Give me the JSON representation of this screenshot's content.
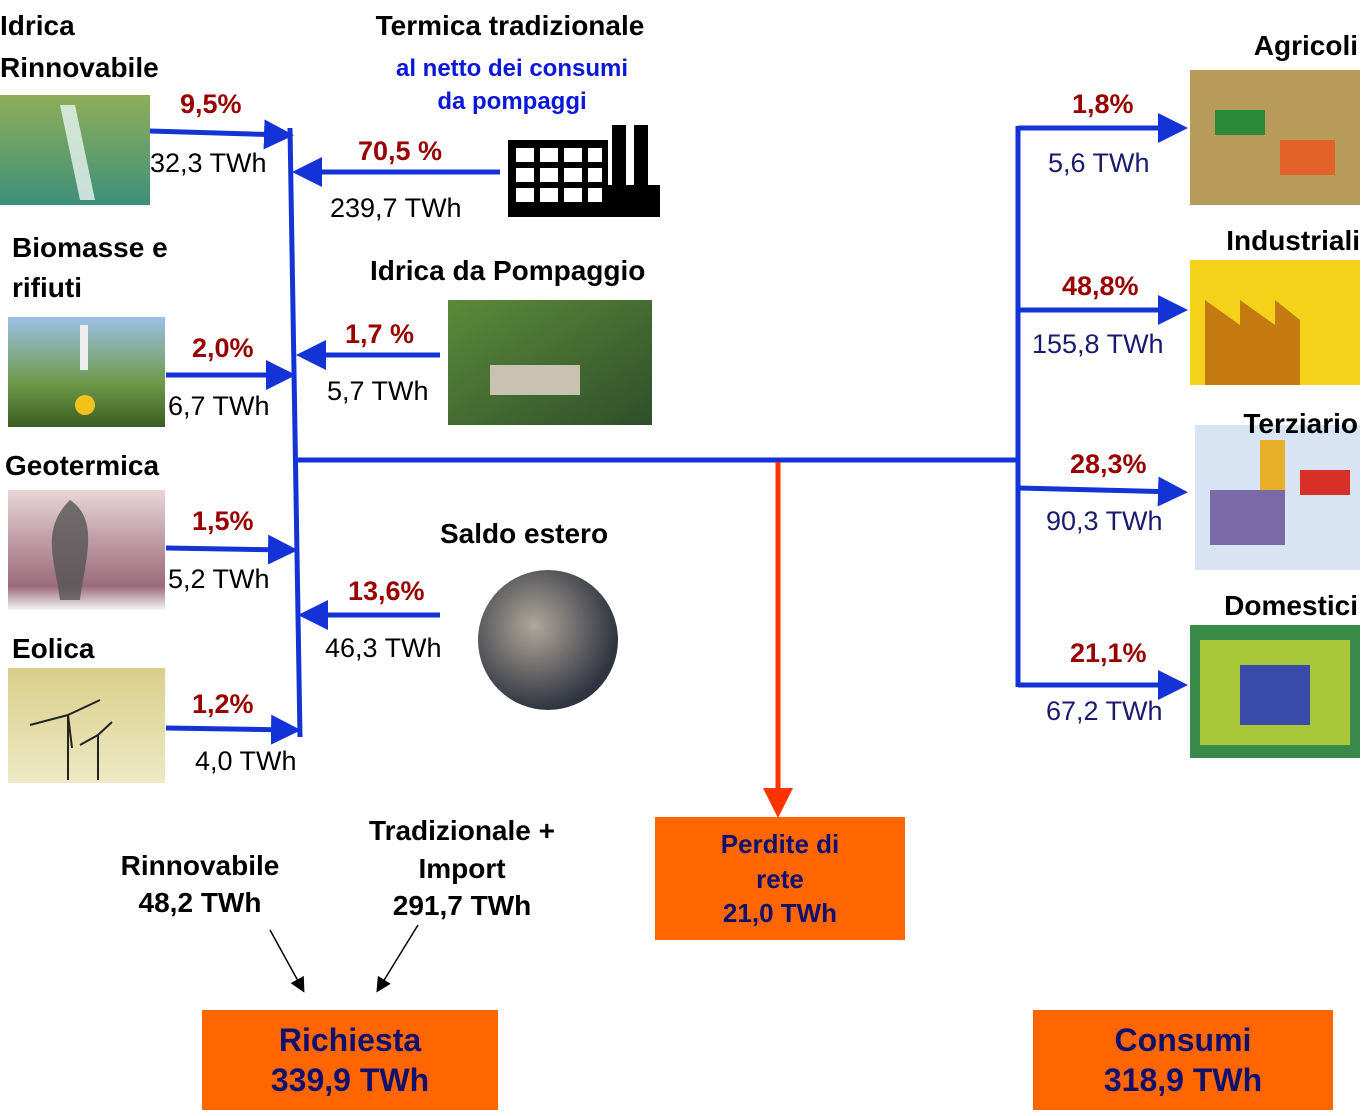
{
  "sources": [
    {
      "label": [
        "Idrica",
        "Rinnovabile"
      ],
      "share": "9,5%",
      "energy": "32,3 TWh"
    },
    {
      "label": [
        "Biomasse e",
        "rifiuti"
      ],
      "share": "2,0%",
      "energy": "6,7 TWh"
    },
    {
      "label": [
        "Geotermica"
      ],
      "share": "1,5%",
      "energy": "5,2 TWh"
    },
    {
      "label": [
        "Eolica"
      ],
      "share": "1,2%",
      "energy": "4,0 TWh"
    }
  ],
  "inputs": [
    {
      "label": "Termica tradizionale",
      "note": [
        "al netto dei consumi",
        "da pompaggi"
      ],
      "share": "70,5 %",
      "energy": "239,7 TWh"
    },
    {
      "label": "Idrica da Pompaggio",
      "share": "1,7 %",
      "energy": "5,7 TWh"
    },
    {
      "label": "Saldo estero",
      "share": "13,6%",
      "energy": "46,3 TWh"
    }
  ],
  "uses": [
    {
      "label": "Agricoli",
      "share": "1,8%",
      "energy": "5,6 TWh"
    },
    {
      "label": "Industriali",
      "share": "48,8%",
      "energy": "155,8 TWh"
    },
    {
      "label": "Terziario",
      "share": "28,3%",
      "energy": "90,3 TWh"
    },
    {
      "label": "Domestici",
      "share": "21,1%",
      "energy": "67,2 TWh"
    }
  ],
  "summary": [
    {
      "label": [
        "Rinnovabile"
      ],
      "value": "48,2 TWh"
    },
    {
      "label": [
        "Tradizionale +",
        "Import"
      ],
      "value": "291,7 TWh"
    }
  ],
  "losses": {
    "label": [
      "Perdite di",
      "rete"
    ],
    "value": "21,0 TWh"
  },
  "demand": {
    "label": "Richiesta",
    "value": "339,9 TWh"
  },
  "consumption": {
    "label": "Consumi",
    "value": "318,9 TWh"
  }
}
